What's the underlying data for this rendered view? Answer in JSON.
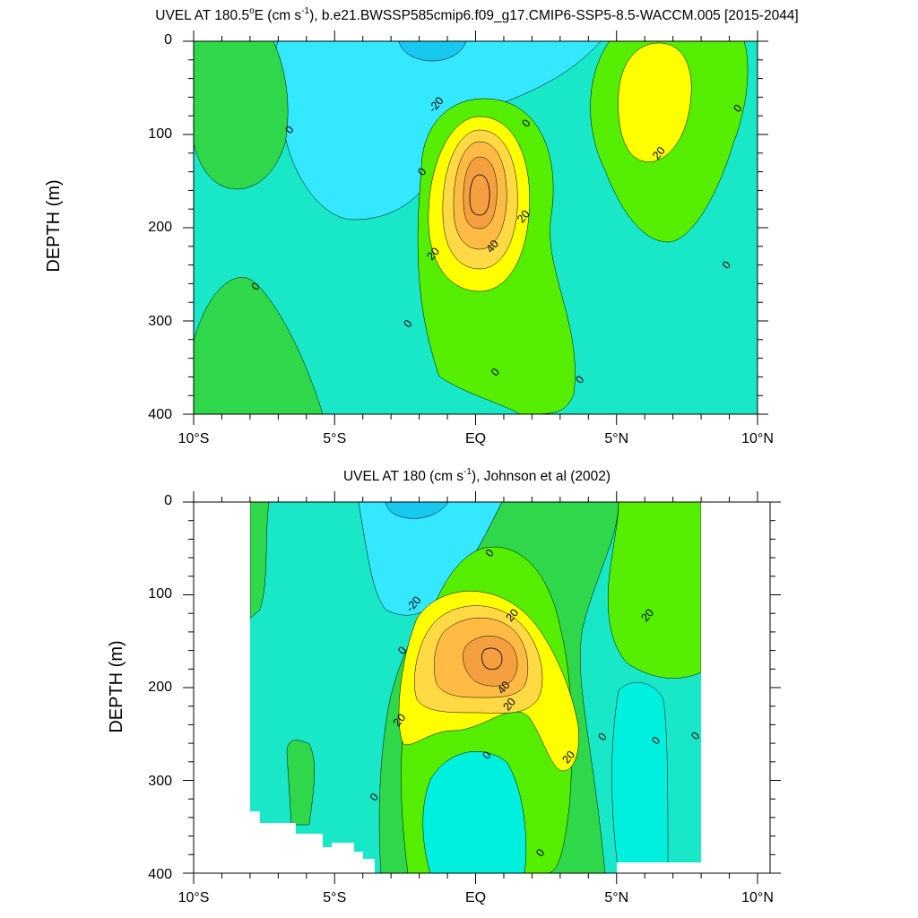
{
  "panels": [
    {
      "title_main": "UVEL AT 180.5",
      "title_deg": "o",
      "title_mid": "E (cm s",
      "title_exp": "-1",
      "title_end": "), b.e21.BWSSP585cmip6.f09_g17.CMIP6-SSP5-8.5-WACCM.005 [2015-2044]",
      "ylabel": "DEPTH (m)"
    },
    {
      "title_main": "UVEL AT 180 (cm s",
      "title_deg": "",
      "title_mid": "",
      "title_exp": "-1",
      "title_end": "), Johnson et al (2002)",
      "ylabel": "DEPTH (m)"
    }
  ],
  "colors": {
    "c_lt_m20": "#18c8f0",
    "c_m20_0": "#33e8ff",
    "c_0_a": "#19e8c8",
    "c_0_b": "#00f0e0",
    "c_pos_a": "#2ed84a",
    "c_pos_b": "#55ee00",
    "c_20": "#ffff00",
    "c_30": "#ffda44",
    "c_40": "#ffbb44",
    "c_50": "#f5a040"
  },
  "chart_data": [
    {
      "type": "contour",
      "title": "UVEL AT 180.5°E (cm s-1), b.e21.BWSSP585cmip6.f09_g17.CMIP6-SSP5-8.5-WACCM.005 [2015-2044]",
      "ylabel": "DEPTH (m)",
      "x_ticklabels": [
        "10°S",
        "5°S",
        "EQ",
        "5°N",
        "10°N"
      ],
      "x_ticks": [
        -10,
        -5,
        0,
        5,
        10
      ],
      "y_ticks": [
        0,
        100,
        200,
        300,
        400
      ],
      "xlim": [
        -10,
        10
      ],
      "ylim": [
        400,
        0
      ],
      "y_reversed": true,
      "contour_labels": [
        {
          "text": "-20",
          "x": -1.4,
          "y": 68
        },
        {
          "text": "0",
          "x": -6.6,
          "y": 95
        },
        {
          "text": "0",
          "x": 1.8,
          "y": 88
        },
        {
          "text": "0",
          "x": 9.3,
          "y": 72
        },
        {
          "text": "0",
          "x": -1.9,
          "y": 140
        },
        {
          "text": "20",
          "x": 1.7,
          "y": 188
        },
        {
          "text": "40",
          "x": 0.6,
          "y": 220
        },
        {
          "text": "20",
          "x": -1.5,
          "y": 228
        },
        {
          "text": "20",
          "x": 6.5,
          "y": 120
        },
        {
          "text": "0",
          "x": -7.8,
          "y": 263
        },
        {
          "text": "0",
          "x": -2.4,
          "y": 303
        },
        {
          "text": "0",
          "x": 8.9,
          "y": 240
        },
        {
          "text": "0",
          "x": 0.7,
          "y": 355
        },
        {
          "text": "0",
          "x": 3.7,
          "y": 363
        }
      ],
      "features": [
        {
          "name": "EUC core",
          "x": 0,
          "y": 165,
          "max_contour": 60
        },
        {
          "name": "NECC",
          "x": 6.6,
          "y": 60,
          "max_contour": 20
        },
        {
          "name": "SEC surface westward",
          "x": -1.3,
          "y": 20,
          "min_contour": -20
        }
      ]
    },
    {
      "type": "contour",
      "title": "UVEL AT 180 (cm s-1), Johnson et al (2002)",
      "ylabel": "DEPTH (m)",
      "x_ticklabels": [
        "10°S",
        "5°S",
        "EQ",
        "5°N",
        "10°N"
      ],
      "x_ticks": [
        -10,
        -5,
        0,
        5,
        10
      ],
      "y_ticks": [
        0,
        100,
        200,
        300,
        400
      ],
      "xlim": [
        -10,
        10
      ],
      "ylim": [
        400,
        0
      ],
      "y_reversed": true,
      "contour_labels": [
        {
          "text": "0",
          "x": 0.5,
          "y": 55
        },
        {
          "text": "-20",
          "x": -2.2,
          "y": 110
        },
        {
          "text": "20",
          "x": 1.3,
          "y": 122
        },
        {
          "text": "20",
          "x": 6.1,
          "y": 122
        },
        {
          "text": "0",
          "x": -2.6,
          "y": 160
        },
        {
          "text": "40",
          "x": 1.0,
          "y": 200
        },
        {
          "text": "20",
          "x": 1.2,
          "y": 218
        },
        {
          "text": "20",
          "x": -2.7,
          "y": 235
        },
        {
          "text": "0",
          "x": 4.5,
          "y": 253
        },
        {
          "text": "0",
          "x": 6.4,
          "y": 257
        },
        {
          "text": "0",
          "x": 7.8,
          "y": 252
        },
        {
          "text": "20",
          "x": 3.3,
          "y": 275
        },
        {
          "text": "0",
          "x": 0.4,
          "y": 273
        },
        {
          "text": "0",
          "x": -3.6,
          "y": 318
        },
        {
          "text": "0",
          "x": 2.3,
          "y": 378
        }
      ],
      "features": [
        {
          "name": "EUC core",
          "x": 0.6,
          "y": 170,
          "max_contour": 60
        },
        {
          "name": "NECC",
          "x": 6.2,
          "y": 80,
          "max_contour": 20
        },
        {
          "name": "SEC surface westward",
          "x": -2.0,
          "y": 80,
          "min_contour": -20
        }
      ]
    }
  ]
}
